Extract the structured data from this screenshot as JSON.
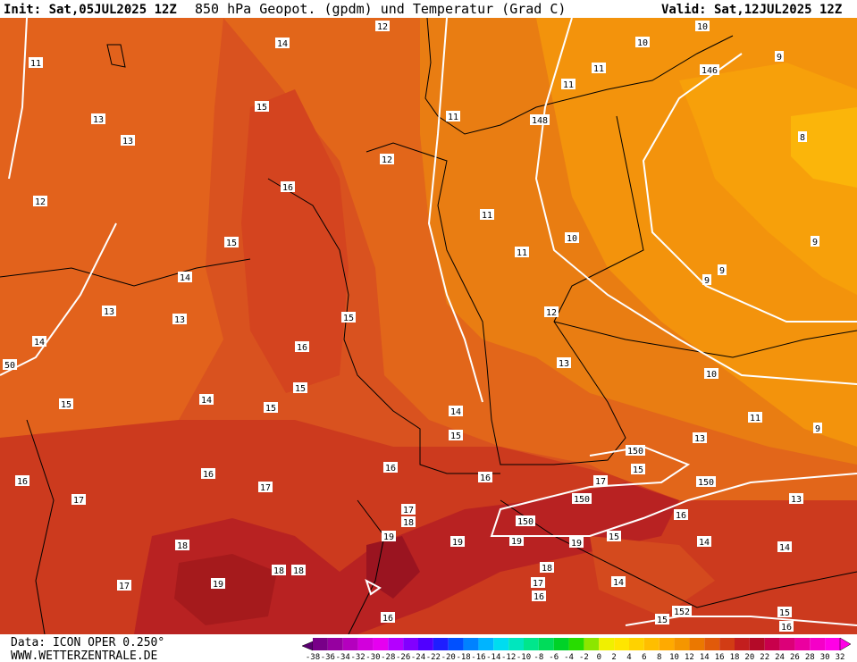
{
  "header": {
    "init": "Init: Sat,05JUL2025 12Z",
    "title": "850 hPa Geopot. (gpdm) und Temperatur (Grad C)",
    "valid": "Valid: Sat,12JUL2025 12Z"
  },
  "map": {
    "contour_labels": [
      "14",
      "12",
      "10",
      "10",
      "11",
      "146",
      "9",
      "11",
      "11",
      "13",
      "15",
      "11",
      "148",
      "13",
      "8",
      "12",
      "16",
      "12",
      "11",
      "10",
      "15",
      "11",
      "9",
      "9",
      "14",
      "9",
      "13",
      "13",
      "15",
      "12",
      "14",
      "16",
      "50",
      "13",
      "10",
      "15",
      "14",
      "15",
      "15",
      "14",
      "11",
      "9",
      "15",
      "13",
      "150",
      "15",
      "16",
      "16",
      "16",
      "16",
      "17",
      "150",
      "17",
      "17",
      "150",
      "13",
      "17",
      "18",
      "16",
      "150",
      "15",
      "19",
      "19",
      "19",
      "19",
      "14",
      "14",
      "18",
      "18",
      "18",
      "18",
      "19",
      "17",
      "17",
      "14",
      "16",
      "16",
      "15",
      "152",
      "15",
      "16"
    ]
  },
  "footer": {
    "source": "Data: ICON OPER 0.250°",
    "site": "WWW.WETTERZENTRALE.DE"
  },
  "colorbar": {
    "labels": [
      "-38",
      "-36",
      "-34",
      "-32",
      "-30",
      "-28",
      "-26",
      "-24",
      "-22",
      "-20",
      "-18",
      "-16",
      "-14",
      "-12",
      "-10",
      "-8",
      "-6",
      "-4",
      "-2",
      "0",
      "2",
      "4",
      "6",
      "8",
      "10",
      "12",
      "14",
      "16",
      "18",
      "20",
      "22",
      "24",
      "26",
      "28",
      "30",
      "32"
    ]
  }
}
